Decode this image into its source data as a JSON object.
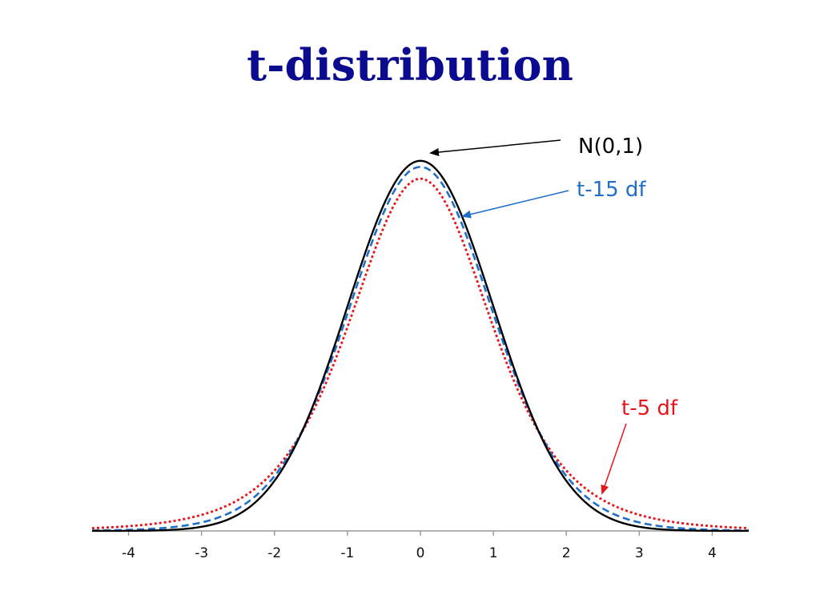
{
  "page": {
    "title": "t-distribution"
  },
  "chart_data": {
    "type": "line",
    "title": "",
    "xlabel": "",
    "ylabel": "",
    "xlim": [
      -4.5,
      4.5
    ],
    "ylim": [
      0,
      0.41
    ],
    "x_ticks": [
      -4,
      -3,
      -2,
      -1,
      0,
      1,
      2,
      3,
      4
    ],
    "grid": false,
    "series": [
      {
        "name": "N(0,1)",
        "dist": "normal",
        "color": "#000000",
        "style": "solid",
        "x": [
          -4.5,
          -4,
          -3,
          -2,
          -1,
          0,
          1,
          2,
          3,
          4,
          4.5
        ],
        "y": [
          1.6e-05,
          0.00013,
          0.0044,
          0.054,
          0.242,
          0.399,
          0.242,
          0.054,
          0.0044,
          0.00013,
          1.6e-05
        ]
      },
      {
        "name": "t-15 df",
        "dist": "t",
        "df": 15,
        "color": "#1f6fc9",
        "style": "dashed",
        "x": [
          -4.5,
          -4,
          -3,
          -2,
          -1,
          0,
          1,
          2,
          3,
          4,
          4.5
        ],
        "y": [
          0.0006,
          0.0016,
          0.0096,
          0.059,
          0.234,
          0.392,
          0.234,
          0.059,
          0.0096,
          0.0016,
          0.0006
        ]
      },
      {
        "name": "t-5 df",
        "dist": "t",
        "df": 5,
        "color": "#e8141c",
        "style": "dotted",
        "x": [
          -4.5,
          -4,
          -3,
          -2,
          -1,
          0,
          1,
          2,
          3,
          4,
          4.5
        ],
        "y": [
          0.0038,
          0.0051,
          0.0173,
          0.065,
          0.22,
          0.38,
          0.22,
          0.065,
          0.0173,
          0.0051,
          0.0038
        ]
      }
    ],
    "annotations": [
      {
        "text": "N(0,1)",
        "color": "#000000",
        "points_to": "N(0,1) peak"
      },
      {
        "text": "t-15 df",
        "color": "#1f6fc9",
        "points_to": "t-15 df curve"
      },
      {
        "text": "t-5 df",
        "color": "#e8141c",
        "points_to": "t-5 df tail"
      }
    ]
  }
}
